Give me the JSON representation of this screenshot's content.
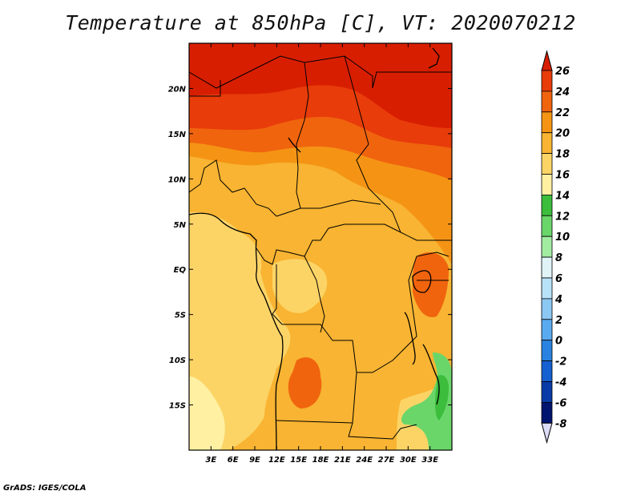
{
  "title": "Temperature at 850hPa [C], VT: 2020070212",
  "credit": "GrADS: IGES/COLA",
  "map": {
    "lon_range": [
      0,
      36
    ],
    "lat_range": [
      -20,
      25
    ],
    "lon_ticks": [
      {
        "value": 3,
        "label": "3E"
      },
      {
        "value": 6,
        "label": "6E"
      },
      {
        "value": 9,
        "label": "9E"
      },
      {
        "value": 12,
        "label": "12E"
      },
      {
        "value": 15,
        "label": "15E"
      },
      {
        "value": 18,
        "label": "18E"
      },
      {
        "value": 21,
        "label": "21E"
      },
      {
        "value": 24,
        "label": "24E"
      },
      {
        "value": 27,
        "label": "27E"
      },
      {
        "value": 30,
        "label": "30E"
      },
      {
        "value": 33,
        "label": "33E"
      }
    ],
    "lat_ticks": [
      {
        "value": 20,
        "label": "20N"
      },
      {
        "value": 15,
        "label": "15N"
      },
      {
        "value": 10,
        "label": "10N"
      },
      {
        "value": 5,
        "label": "5N"
      },
      {
        "value": 0,
        "label": "EQ"
      },
      {
        "value": -5,
        "label": "5S"
      },
      {
        "value": -10,
        "label": "10S"
      },
      {
        "value": -15,
        "label": "15S"
      }
    ]
  },
  "colorbar": {
    "levels": [
      26,
      24,
      22,
      20,
      18,
      16,
      14,
      12,
      10,
      8,
      6,
      4,
      2,
      0,
      -2,
      -4,
      -6,
      -8
    ],
    "labels": [
      "26",
      "24",
      "22",
      "20",
      "18",
      "16",
      "14",
      "12",
      "10",
      "8",
      "6",
      "4",
      "2",
      "0",
      "-2",
      "-4",
      "-6",
      "-8"
    ],
    "colors": [
      "#d81e00",
      "#e83c0a",
      "#f0640e",
      "#f59414",
      "#f8b432",
      "#fcd466",
      "#fff0a2",
      "#3cbd3c",
      "#6ad66a",
      "#a2eca2",
      "#e0f4f8",
      "#b8e2f8",
      "#8cc8f4",
      "#5aaaf0",
      "#2a82e0",
      "#1460d0",
      "#0a3ca8",
      "#001470"
    ],
    "top_color": "#d81e00",
    "bottom_color": "#dcdcf8"
  }
}
